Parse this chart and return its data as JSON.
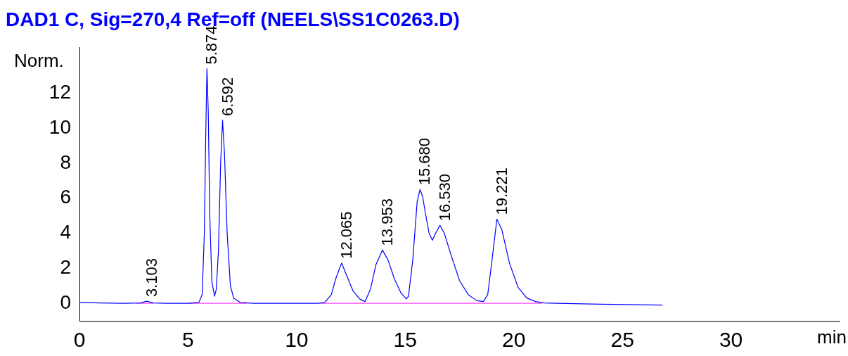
{
  "chart_data": {
    "type": "line",
    "title": "DAD1 C, Sig=270,4 Ref=off (NEELS\\SS1C0263.D)",
    "xlabel": "min",
    "ylabel": "Norm.",
    "xlim": [
      0,
      35
    ],
    "xticks": [
      0,
      5,
      10,
      15,
      20,
      25,
      30
    ],
    "ylim": [
      -1,
      14.6
    ],
    "yticks": [
      0,
      2,
      4,
      6,
      8,
      10,
      12
    ],
    "grid": false,
    "legend": false,
    "marker": "none",
    "line_style": "solid",
    "series": [
      {
        "color": "#0000ff",
        "x": [
          0,
          1,
          2,
          2.8,
          3.1,
          3.4,
          4,
          5,
          5.5,
          5.65,
          5.75,
          5.82,
          5.87,
          5.93,
          6.0,
          6.1,
          6.22,
          6.3,
          6.4,
          6.5,
          6.59,
          6.68,
          6.8,
          6.95,
          7.1,
          7.4,
          8,
          9,
          10,
          11,
          11.3,
          11.6,
          11.8,
          12.07,
          12.3,
          12.6,
          12.9,
          13.15,
          13.4,
          13.65,
          13.95,
          14.2,
          14.5,
          14.8,
          15.05,
          15.15,
          15.35,
          15.55,
          15.68,
          15.8,
          15.95,
          16.1,
          16.25,
          16.4,
          16.6,
          16.8,
          17.1,
          17.5,
          17.9,
          18.3,
          18.6,
          18.8,
          19.0,
          19.22,
          19.45,
          19.8,
          20.2,
          20.6,
          21,
          21.4,
          22,
          24,
          26.85
        ],
        "values": [
          0.05,
          0.02,
          0,
          0.02,
          0.12,
          0.02,
          0,
          0,
          0.05,
          0.5,
          4,
          10,
          13.4,
          11,
          5,
          1.2,
          0.4,
          0.8,
          3,
          8,
          10.45,
          8.5,
          4,
          1,
          0.3,
          0.05,
          0,
          0,
          0,
          0,
          0.05,
          0.5,
          1.4,
          2.3,
          1.6,
          0.7,
          0.25,
          0.1,
          0.8,
          2.2,
          3.04,
          2.5,
          1.4,
          0.6,
          0.25,
          0.4,
          2.5,
          5.8,
          6.5,
          6.1,
          5,
          4,
          3.6,
          4.0,
          4.45,
          4.0,
          2.8,
          1.3,
          0.5,
          0.15,
          0.1,
          0.5,
          2.5,
          4.8,
          4.2,
          2.3,
          0.9,
          0.3,
          0.1,
          0.02,
          0,
          -0.05,
          -0.1
        ]
      },
      {
        "color": "#ff40ff",
        "x": [
          2.6,
          3.4
        ],
        "values": [
          0,
          0
        ]
      },
      {
        "color": "#ff40ff",
        "x": [
          5.0,
          7.7
        ],
        "values": [
          0,
          0
        ]
      },
      {
        "color": "#ff40ff",
        "x": [
          11.1,
          21.3
        ],
        "values": [
          0,
          0
        ]
      }
    ],
    "annotations": [
      {
        "text": "3.103",
        "x": 3.1,
        "y": 0.12
      },
      {
        "text": "5.874",
        "x": 5.87,
        "y": 13.4
      },
      {
        "text": "6.592",
        "x": 6.59,
        "y": 10.45
      },
      {
        "text": "12.065",
        "x": 12.07,
        "y": 2.3
      },
      {
        "text": "13.953",
        "x": 13.95,
        "y": 3.04
      },
      {
        "text": "15.680",
        "x": 15.68,
        "y": 6.5
      },
      {
        "text": "16.530",
        "x": 16.6,
        "y": 4.45
      },
      {
        "text": "19.221",
        "x": 19.22,
        "y": 4.8
      }
    ]
  }
}
